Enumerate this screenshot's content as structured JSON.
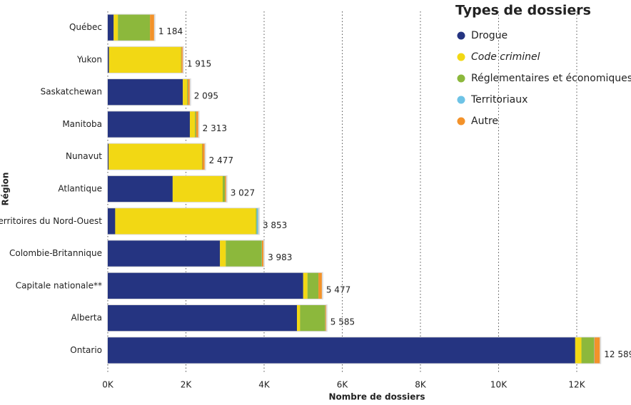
{
  "chart_data": {
    "type": "stacked-barh",
    "xlabel": "Nombre de dossiers",
    "ylabel": "Région",
    "legend_title": "Types de dossiers",
    "legend_position": "upper right",
    "grid": true,
    "categories": [
      "Québec",
      "Yukon",
      "Saskatchewan",
      "Manitoba",
      "Nunavut",
      "Atlantique",
      "Territoires du Nord-Ouest",
      "Colombie-Britannique",
      "Capitale nationale**",
      "Alberta",
      "Ontario"
    ],
    "series": [
      {
        "name": "Drogue",
        "color": "#253481",
        "values": [
          150,
          30,
          1920,
          2100,
          20,
          1660,
          190,
          2870,
          5000,
          4840,
          11960
        ]
      },
      {
        "name": "Code criminel",
        "color": "#f2d814",
        "italic": true,
        "values": [
          110,
          1845,
          110,
          130,
          2390,
          1280,
          3600,
          150,
          110,
          80,
          160
        ]
      },
      {
        "name": "Réglementaires et économiques",
        "color": "#8cb83c",
        "values": [
          820,
          10,
          20,
          30,
          10,
          60,
          20,
          920,
          280,
          640,
          320
        ]
      },
      {
        "name": "Territoriaux",
        "color": "#6ec3e6",
        "values": [
          0,
          0,
          0,
          0,
          0,
          0,
          40,
          5,
          0,
          5,
          9
        ]
      },
      {
        "name": "Autre",
        "color": "#f3922a",
        "values": [
          104,
          30,
          45,
          53,
          57,
          27,
          3,
          38,
          87,
          20,
          140
        ]
      }
    ],
    "totals": [
      1184,
      1915,
      2095,
      2313,
      2477,
      3027,
      3853,
      3983,
      5477,
      5585,
      12589
    ],
    "total_labels": [
      "1 184",
      "1 915",
      "2 095",
      "2 313",
      "2 477",
      "3 027",
      "3 853",
      "3 983",
      "5 477",
      "5 585",
      "12 589"
    ],
    "xlim": [
      0,
      13000
    ],
    "xticks": [
      {
        "value": 0,
        "label": "0K"
      },
      {
        "value": 2000,
        "label": "2K"
      },
      {
        "value": 4000,
        "label": "4K"
      },
      {
        "value": 6000,
        "label": "6K"
      },
      {
        "value": 8000,
        "label": "8K"
      },
      {
        "value": 10000,
        "label": "10K"
      },
      {
        "value": 12000,
        "label": "12K"
      }
    ]
  }
}
